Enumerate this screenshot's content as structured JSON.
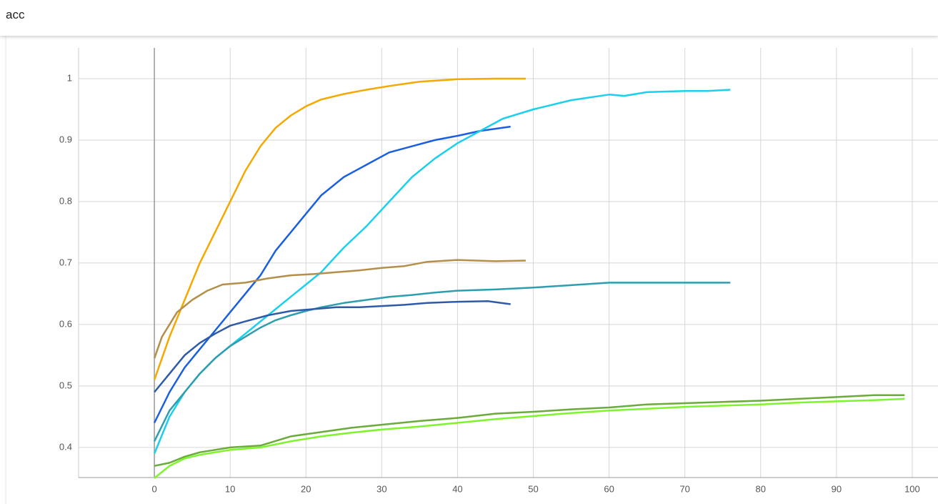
{
  "chart_data": {
    "type": "line",
    "title": "acc",
    "xlim": [
      -10,
      103.4
    ],
    "ylim": [
      0.351,
      1.05
    ],
    "xticks": [
      0,
      10,
      20,
      30,
      40,
      50,
      60,
      70,
      80,
      90,
      100
    ],
    "yticks": [
      0.4,
      0.5,
      0.6,
      0.7,
      0.8,
      0.9,
      1
    ],
    "grid": true,
    "series": [
      {
        "color": "#f5a800",
        "x": [
          0,
          2,
          4,
          6,
          8,
          10,
          12,
          14,
          16,
          18,
          20,
          22,
          25,
          28,
          31,
          35,
          40,
          45,
          49
        ],
        "values": [
          0.51,
          0.58,
          0.64,
          0.7,
          0.75,
          0.8,
          0.85,
          0.89,
          0.92,
          0.94,
          0.955,
          0.966,
          0.975,
          0.982,
          0.988,
          0.995,
          0.999,
          1.0,
          1.0
        ]
      },
      {
        "color": "#1a5fe0",
        "x": [
          0,
          2,
          4,
          6,
          8,
          10,
          12,
          14,
          16,
          18,
          20,
          22,
          25,
          28,
          31,
          34,
          37,
          40,
          43,
          47
        ],
        "values": [
          0.44,
          0.49,
          0.53,
          0.56,
          0.59,
          0.62,
          0.65,
          0.68,
          0.72,
          0.75,
          0.78,
          0.81,
          0.84,
          0.86,
          0.88,
          0.89,
          0.9,
          0.907,
          0.915,
          0.922
        ]
      },
      {
        "color": "#1ad0ee",
        "x": [
          0,
          2,
          4,
          6,
          8,
          10,
          12,
          14,
          16,
          18,
          20,
          22,
          25,
          28,
          31,
          34,
          37,
          40,
          43,
          46,
          50,
          55,
          60,
          62,
          65,
          70,
          73,
          76
        ],
        "values": [
          0.39,
          0.45,
          0.49,
          0.52,
          0.545,
          0.565,
          0.585,
          0.605,
          0.625,
          0.645,
          0.665,
          0.685,
          0.725,
          0.76,
          0.8,
          0.84,
          0.87,
          0.895,
          0.915,
          0.935,
          0.95,
          0.965,
          0.974,
          0.972,
          0.978,
          0.98,
          0.98,
          0.982
        ]
      },
      {
        "color": "#b38f4a",
        "x": [
          0,
          1,
          3,
          5,
          7,
          9,
          12,
          15,
          18,
          21,
          24,
          27,
          30,
          33,
          36,
          40,
          45,
          49
        ],
        "values": [
          0.545,
          0.58,
          0.62,
          0.64,
          0.655,
          0.665,
          0.668,
          0.675,
          0.68,
          0.682,
          0.685,
          0.688,
          0.692,
          0.695,
          0.702,
          0.705,
          0.703,
          0.704
        ]
      },
      {
        "color": "#2e9eae",
        "x": [
          0,
          2,
          4,
          6,
          8,
          10,
          12,
          14,
          16,
          18,
          20,
          22,
          25,
          28,
          31,
          34,
          37,
          40,
          45,
          50,
          55,
          60,
          65,
          70,
          76
        ],
        "values": [
          0.41,
          0.46,
          0.49,
          0.52,
          0.545,
          0.565,
          0.58,
          0.595,
          0.607,
          0.615,
          0.622,
          0.628,
          0.635,
          0.64,
          0.645,
          0.648,
          0.652,
          0.655,
          0.657,
          0.66,
          0.664,
          0.668,
          0.668,
          0.668,
          0.668
        ]
      },
      {
        "color": "#2f5aa8",
        "x": [
          0,
          2,
          4,
          6,
          8,
          10,
          12,
          15,
          18,
          21,
          24,
          27,
          30,
          33,
          36,
          40,
          44,
          47
        ],
        "values": [
          0.49,
          0.52,
          0.55,
          0.57,
          0.585,
          0.598,
          0.605,
          0.615,
          0.622,
          0.625,
          0.628,
          0.628,
          0.63,
          0.632,
          0.635,
          0.637,
          0.638,
          0.633
        ]
      },
      {
        "color": "#6aab3a",
        "x": [
          0,
          2,
          4,
          6,
          8,
          10,
          14,
          18,
          22,
          26,
          30,
          35,
          40,
          45,
          50,
          55,
          60,
          65,
          70,
          75,
          80,
          85,
          90,
          95,
          99
        ],
        "values": [
          0.37,
          0.375,
          0.385,
          0.392,
          0.396,
          0.4,
          0.403,
          0.418,
          0.425,
          0.432,
          0.437,
          0.443,
          0.448,
          0.455,
          0.458,
          0.462,
          0.465,
          0.47,
          0.472,
          0.474,
          0.476,
          0.479,
          0.482,
          0.485,
          0.485
        ]
      },
      {
        "color": "#7cf52a",
        "x": [
          0,
          2,
          4,
          6,
          8,
          10,
          14,
          18,
          22,
          26,
          30,
          35,
          40,
          45,
          50,
          55,
          60,
          65,
          70,
          75,
          80,
          85,
          90,
          95,
          99
        ],
        "values": [
          0.35,
          0.37,
          0.382,
          0.388,
          0.392,
          0.396,
          0.4,
          0.41,
          0.418,
          0.424,
          0.429,
          0.434,
          0.44,
          0.446,
          0.451,
          0.456,
          0.46,
          0.463,
          0.466,
          0.468,
          0.47,
          0.473,
          0.475,
          0.477,
          0.479
        ]
      }
    ]
  }
}
